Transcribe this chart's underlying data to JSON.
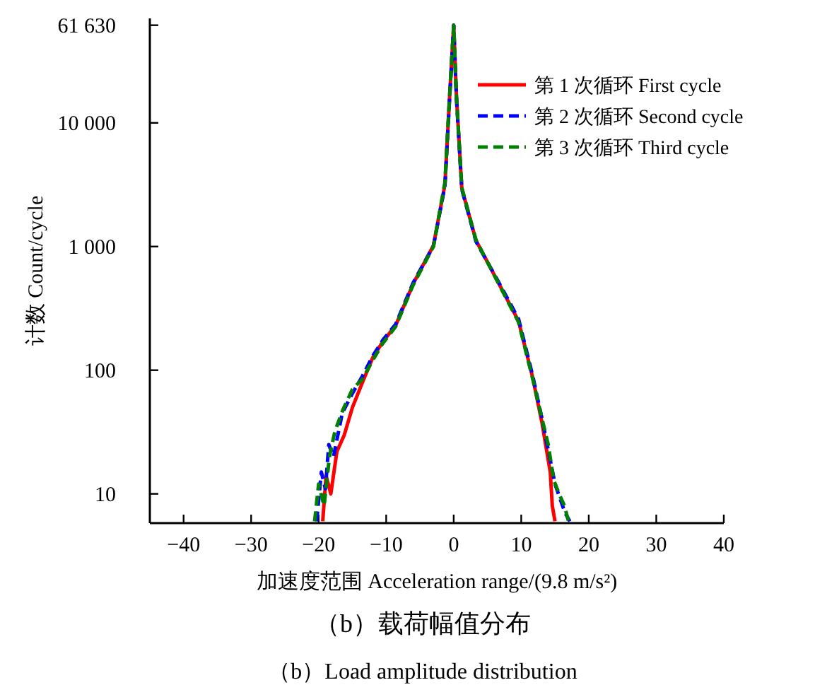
{
  "chart_data": {
    "type": "line",
    "title": "（b）载荷幅值分布",
    "subtitle": "（b）Load amplitude distribution",
    "xlabel": "加速度范围 Acceleration range/(9.8 m/s²)",
    "ylabel": "计数 Count/cycle",
    "log": "y",
    "legend": "top right",
    "xlim": [
      -45,
      40
    ],
    "ylim": [
      5.8,
      70000
    ],
    "xticks": [
      {
        "value": -40,
        "label": "−40"
      },
      {
        "value": -30,
        "label": "−30"
      },
      {
        "value": -20,
        "label": "−20"
      },
      {
        "value": -10,
        "label": "−10"
      },
      0,
      10,
      20,
      30,
      40
    ],
    "yticks": [
      10,
      100,
      {
        "value": 1000,
        "label": "1 000"
      },
      {
        "value": 10000,
        "label": "10 000"
      },
      {
        "value": 61630,
        "label": "61 630"
      }
    ],
    "series": [
      {
        "name": "第 1 次循环 First cycle",
        "color": "#ff0000",
        "line_style": "solid",
        "x": [
          -19.4,
          -18.9,
          -18.2,
          -17.3,
          -16.2,
          -15,
          -13.5,
          -12,
          -10.5,
          -8.6,
          -6,
          -3,
          -1.3,
          -0.6,
          0,
          0.4,
          1.2,
          3.3,
          6.7,
          9.6,
          11.7,
          13.1,
          14.3,
          14.6,
          15
        ],
        "values": [
          6,
          14,
          10,
          22,
          30,
          50,
          80,
          126,
          170,
          230,
          500,
          1020,
          3160,
          16600,
          61630,
          16600,
          2950,
          1120,
          500,
          250,
          87,
          37,
          15,
          8,
          6
        ]
      },
      {
        "name": "第 2 次循环 Second cycle",
        "color": "#0000ff",
        "line_style": "dashed",
        "x": [
          -20.3,
          -19.6,
          -19,
          -18.5,
          -17.8,
          -16.5,
          -15,
          -13.5,
          -12,
          -10.5,
          -8.6,
          -6,
          -3,
          -1.3,
          -0.6,
          0,
          0.4,
          1.2,
          3.3,
          6.7,
          9.6,
          11.7,
          13.1,
          14.2,
          15,
          15.8,
          16.5,
          17.2
        ],
        "values": [
          6,
          15,
          11,
          25,
          20,
          45,
          65,
          90,
          130,
          175,
          235,
          510,
          1010,
          3100,
          16000,
          61630,
          16000,
          2900,
          1100,
          510,
          260,
          90,
          40,
          20,
          12,
          9,
          7,
          6
        ]
      },
      {
        "name": "第 3 次循环 Third cycle",
        "color": "#008000",
        "line_style": "dashed",
        "x": [
          -20.6,
          -20,
          -19.2,
          -18.4,
          -17.6,
          -16.4,
          -15,
          -13.5,
          -12,
          -10.5,
          -8.6,
          -6,
          -3,
          -1.3,
          -0.6,
          0,
          0.4,
          1.2,
          3.3,
          6.7,
          9.6,
          11.7,
          13.1,
          14,
          14.8,
          15.6,
          16.4,
          17
        ],
        "values": [
          6,
          12,
          8,
          20,
          32,
          48,
          70,
          85,
          120,
          165,
          225,
          490,
          1000,
          3300,
          16800,
          61630,
          16800,
          3000,
          1130,
          495,
          245,
          85,
          40,
          25,
          13,
          10,
          8,
          6
        ]
      }
    ]
  }
}
